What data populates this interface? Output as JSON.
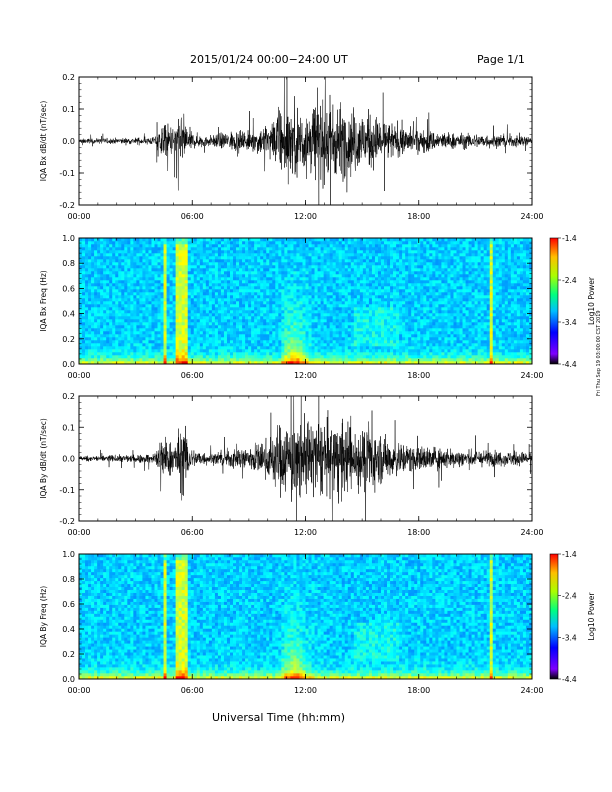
{
  "header": {
    "title": "2015/01/24  00:00−24:00 UT",
    "page": "Page 1/1"
  },
  "footer": {
    "xaxis_title": "Universal Time (hh:mm)",
    "stamp": "Fri Thu Sep 19 03:00:00 CST 2019"
  },
  "colors": {
    "trace": "#000000",
    "colorbar_high": "#ff0000",
    "colorbar_low": "#000000"
  },
  "chart_data": [
    {
      "type": "line",
      "ylabel": "IQA Bx dB/dt (nT/sec)",
      "xlim": [
        "00:00",
        "24:00"
      ],
      "xticks": [
        "00:00",
        "06:00",
        "12:00",
        "18:00",
        "24:00"
      ],
      "ylim": [
        -0.2,
        0.2
      ],
      "yticks": [
        "-0.2",
        "-0.1",
        "0.0",
        "0.1",
        "0.2"
      ],
      "envelope_hours": [
        0,
        2,
        4,
        4.5,
        5,
        5.5,
        6,
        7,
        8,
        9,
        10,
        10.5,
        11,
        12,
        13,
        14,
        15,
        16,
        17,
        18,
        20,
        22,
        24
      ],
      "envelope_amplitude": [
        0.012,
        0.015,
        0.02,
        0.1,
        0.07,
        0.13,
        0.04,
        0.03,
        0.05,
        0.06,
        0.08,
        0.15,
        0.18,
        0.2,
        0.2,
        0.19,
        0.16,
        0.12,
        0.08,
        0.06,
        0.04,
        0.035,
        0.03
      ]
    },
    {
      "type": "heatmap",
      "ylabel": "IQA Bx Freq (Hz)",
      "xlim": [
        "00:00",
        "24:00"
      ],
      "xticks": [
        "00:00",
        "06:00",
        "12:00",
        "18:00",
        "24:00"
      ],
      "ylim": [
        0.0,
        1.0
      ],
      "yticks": [
        "0.0",
        "0.2",
        "0.4",
        "0.6",
        "0.8",
        "1.0"
      ],
      "colorbar_label": "Log10 Power",
      "colorbar_ticks": [
        "-1.4",
        "-2.4",
        "-3.4",
        "-4.4"
      ],
      "zlim": [
        -4.4,
        -1.4
      ],
      "vertical_stripe_hours": [
        4.6,
        5.3,
        5.6,
        21.8
      ],
      "broadband_event_hours": [
        11.2,
        12.0
      ]
    },
    {
      "type": "line",
      "ylabel": "IQA By dB/dt (nT/sec)",
      "xlim": [
        "00:00",
        "24:00"
      ],
      "xticks": [
        "00:00",
        "06:00",
        "12:00",
        "18:00",
        "24:00"
      ],
      "ylim": [
        -0.2,
        0.2
      ],
      "yticks": [
        "-0.2",
        "-0.1",
        "0.0",
        "0.1",
        "0.2"
      ],
      "envelope_hours": [
        0,
        2,
        4,
        4.5,
        5,
        5.5,
        6,
        7,
        8,
        9,
        10,
        10.5,
        11,
        12,
        13,
        14,
        15,
        16,
        17,
        18,
        20,
        22,
        24
      ],
      "envelope_amplitude": [
        0.015,
        0.018,
        0.025,
        0.12,
        0.08,
        0.2,
        0.05,
        0.03,
        0.05,
        0.07,
        0.1,
        0.18,
        0.2,
        0.2,
        0.2,
        0.2,
        0.17,
        0.13,
        0.09,
        0.07,
        0.05,
        0.04,
        0.035
      ]
    },
    {
      "type": "heatmap",
      "ylabel": "IQA By Freq (Hz)",
      "xlim": [
        "00:00",
        "24:00"
      ],
      "xticks": [
        "00:00",
        "06:00",
        "12:00",
        "18:00",
        "24:00"
      ],
      "ylim": [
        0.0,
        1.0
      ],
      "yticks": [
        "0.0",
        "0.2",
        "0.4",
        "0.6",
        "0.8",
        "1.0"
      ],
      "colorbar_label": "Log10 Power",
      "colorbar_ticks": [
        "-1.4",
        "-2.4",
        "-3.4",
        "-4.4"
      ],
      "zlim": [
        -4.4,
        -1.4
      ],
      "vertical_stripe_hours": [
        4.6,
        5.3,
        5.6,
        21.8
      ],
      "broadband_event_hours": [
        11.2,
        12.0
      ]
    }
  ]
}
